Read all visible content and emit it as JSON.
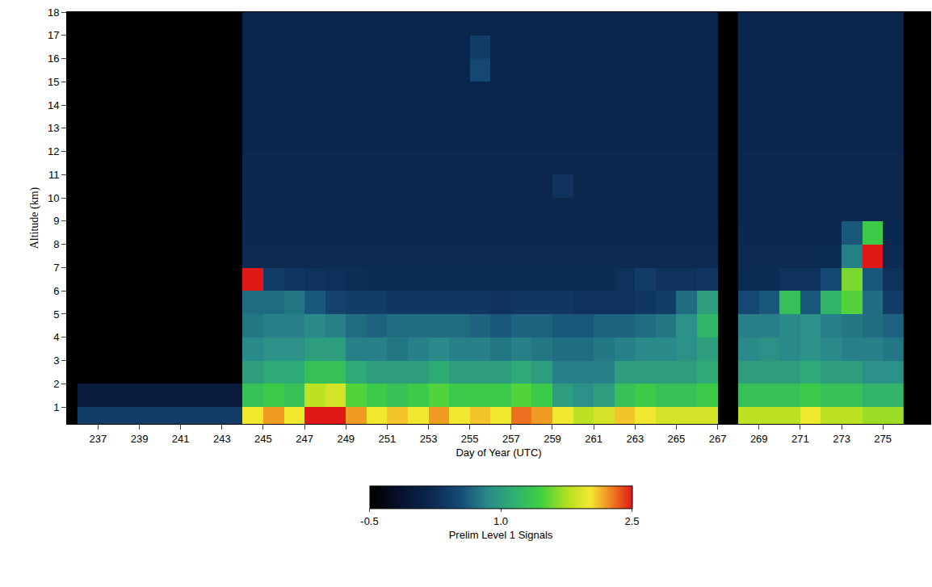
{
  "chart_data": {
    "type": "heatmap",
    "xlabel": "Day of Year (UTC)",
    "ylabel": "Altitude (km)",
    "xlim": [
      235.5,
      277.3
    ],
    "xticks": [
      237,
      239,
      241,
      243,
      245,
      247,
      249,
      251,
      253,
      255,
      257,
      259,
      261,
      263,
      265,
      267,
      269,
      271,
      273,
      275
    ],
    "ylim": [
      0.27,
      18
    ],
    "yticks": [
      1,
      2,
      3,
      4,
      5,
      6,
      7,
      8,
      9,
      10,
      11,
      12,
      13,
      14,
      15,
      16,
      17,
      18
    ],
    "x": [
      236.5,
      237.5,
      238.5,
      239.5,
      240.5,
      241.5,
      242.5,
      243.5,
      244.5,
      245.5,
      246.5,
      247.5,
      248.5,
      249.5,
      250.5,
      251.5,
      252.5,
      253.5,
      254.5,
      255.5,
      256.5,
      257.5,
      258.5,
      259.5,
      260.5,
      261.5,
      262.5,
      263.5,
      264.5,
      265.5,
      266.5,
      267.5,
      268.5,
      269.5,
      270.5,
      271.5,
      272.5,
      273.5,
      274.5,
      275.5
    ],
    "y": [
      0.5,
      1.5,
      2.5,
      3.5,
      4.5,
      5.5,
      6.5,
      7.5,
      8.5,
      9.5,
      10.5,
      11.5,
      12.5,
      13.5,
      14.5,
      15.5,
      16.5,
      17.5
    ],
    "cells": [
      [
        0.4,
        0.4,
        0.4,
        0.4,
        0.4,
        0.4,
        0.4,
        0.4,
        2.0,
        2.2,
        2.0,
        2.5,
        2.6,
        2.2,
        2.0,
        2.1,
        2.0,
        2.2,
        2.0,
        2.1,
        2.0,
        2.3,
        2.2,
        2.0,
        1.8,
        1.9,
        2.1,
        2.0,
        1.9,
        1.9,
        1.9,
        null,
        1.8,
        1.8,
        1.8,
        2.0,
        1.8,
        1.8,
        1.7,
        1.7
      ],
      [
        0.0,
        0.0,
        0.0,
        0.0,
        0.0,
        0.0,
        0.0,
        0.0,
        1.3,
        1.4,
        1.3,
        1.8,
        1.9,
        1.5,
        1.4,
        1.3,
        1.4,
        1.5,
        1.4,
        1.4,
        1.4,
        1.5,
        1.4,
        1.0,
        0.9,
        1.0,
        1.3,
        1.4,
        1.3,
        1.3,
        1.4,
        null,
        1.3,
        1.3,
        1.3,
        1.4,
        1.3,
        1.3,
        1.2,
        1.2
      ],
      [
        -0.5,
        -0.5,
        -0.5,
        -0.5,
        -0.5,
        -0.5,
        -0.5,
        -0.5,
        1.0,
        1.1,
        1.1,
        1.3,
        1.3,
        1.1,
        1.0,
        1.0,
        1.0,
        1.1,
        1.0,
        1.0,
        1.0,
        1.1,
        1.0,
        0.8,
        0.8,
        0.8,
        1.0,
        1.0,
        1.0,
        1.0,
        1.1,
        null,
        1.0,
        1.0,
        1.0,
        1.1,
        1.0,
        1.0,
        0.9,
        0.9
      ],
      [
        -0.5,
        -0.5,
        -0.5,
        -0.5,
        -0.5,
        -0.5,
        -0.5,
        -0.5,
        0.85,
        0.9,
        0.9,
        1.0,
        1.0,
        0.8,
        0.8,
        0.75,
        0.8,
        0.85,
        0.8,
        0.8,
        0.75,
        0.8,
        0.75,
        0.7,
        0.7,
        0.75,
        0.8,
        0.85,
        0.85,
        0.9,
        1.0,
        null,
        0.85,
        0.9,
        0.85,
        0.9,
        0.85,
        0.8,
        0.8,
        0.75
      ],
      [
        -0.5,
        -0.5,
        -0.5,
        -0.5,
        -0.5,
        -0.5,
        -0.5,
        -0.5,
        0.75,
        0.8,
        0.8,
        0.85,
        0.8,
        0.7,
        0.65,
        0.7,
        0.7,
        0.7,
        0.7,
        0.65,
        0.6,
        0.65,
        0.65,
        0.6,
        0.6,
        0.65,
        0.65,
        0.7,
        0.75,
        0.9,
        1.2,
        null,
        0.8,
        0.8,
        0.85,
        0.9,
        0.8,
        0.75,
        0.7,
        0.65
      ],
      [
        -0.5,
        -0.5,
        -0.5,
        -0.5,
        -0.5,
        -0.5,
        -0.5,
        -0.5,
        0.7,
        0.7,
        0.75,
        0.6,
        0.45,
        0.4,
        0.4,
        0.35,
        0.35,
        0.35,
        0.35,
        0.35,
        0.3,
        0.35,
        0.35,
        0.35,
        0.3,
        0.3,
        0.3,
        0.35,
        0.4,
        0.7,
        1.0,
        null,
        0.5,
        0.6,
        1.3,
        0.6,
        1.2,
        1.5,
        0.7,
        0.4
      ],
      [
        -0.5,
        -0.5,
        -0.5,
        -0.5,
        -0.5,
        -0.5,
        -0.5,
        -0.5,
        2.6,
        0.4,
        0.35,
        0.3,
        0.28,
        0.26,
        0.25,
        0.25,
        0.25,
        0.25,
        0.25,
        0.25,
        0.25,
        0.25,
        0.25,
        0.25,
        0.25,
        0.25,
        0.3,
        0.4,
        0.3,
        0.3,
        0.35,
        null,
        0.25,
        0.25,
        0.3,
        0.3,
        0.5,
        1.6,
        0.6,
        0.3
      ],
      [
        -0.5,
        -0.5,
        -0.5,
        -0.5,
        -0.5,
        -0.5,
        -0.5,
        -0.5,
        0.22,
        0.22,
        0.22,
        0.22,
        0.22,
        0.22,
        0.22,
        0.22,
        0.22,
        0.22,
        0.22,
        0.22,
        0.22,
        0.22,
        0.22,
        0.22,
        0.22,
        0.22,
        0.22,
        0.22,
        0.22,
        0.22,
        0.22,
        null,
        0.22,
        0.22,
        0.22,
        0.22,
        0.25,
        0.8,
        2.6,
        0.22
      ],
      [
        -0.5,
        -0.5,
        -0.5,
        -0.5,
        -0.5,
        -0.5,
        -0.5,
        -0.5,
        0.2,
        0.2,
        0.2,
        0.2,
        0.2,
        0.2,
        0.2,
        0.2,
        0.2,
        0.2,
        0.2,
        0.2,
        0.2,
        0.2,
        0.2,
        0.2,
        0.2,
        0.2,
        0.2,
        0.2,
        0.2,
        0.2,
        0.2,
        null,
        0.2,
        0.2,
        0.2,
        0.2,
        0.2,
        0.6,
        1.4,
        0.2
      ],
      [
        -0.5,
        -0.5,
        -0.5,
        -0.5,
        -0.5,
        -0.5,
        -0.5,
        -0.5,
        0.18,
        0.18,
        0.18,
        0.18,
        0.18,
        0.18,
        0.18,
        0.18,
        0.18,
        0.18,
        0.18,
        0.18,
        0.18,
        0.18,
        0.18,
        0.18,
        0.18,
        0.18,
        0.18,
        0.18,
        0.18,
        0.18,
        0.18,
        null,
        0.18,
        0.18,
        0.18,
        0.18,
        0.18,
        0.18,
        0.18,
        0.18
      ],
      [
        -0.5,
        -0.5,
        -0.5,
        -0.5,
        -0.5,
        -0.5,
        -0.5,
        -0.5,
        0.18,
        0.18,
        0.18,
        0.18,
        0.18,
        0.18,
        0.18,
        0.18,
        0.18,
        0.18,
        0.18,
        0.18,
        0.18,
        0.18,
        0.18,
        0.3,
        0.18,
        0.18,
        0.18,
        0.18,
        0.18,
        0.18,
        0.18,
        null,
        0.18,
        0.18,
        0.18,
        0.18,
        0.18,
        0.18,
        0.18,
        0.18
      ],
      [
        -0.5,
        -0.5,
        -0.5,
        -0.5,
        -0.5,
        -0.5,
        -0.5,
        -0.5,
        0.17,
        0.17,
        0.17,
        0.17,
        0.17,
        0.17,
        0.17,
        0.17,
        0.17,
        0.17,
        0.17,
        0.17,
        0.17,
        0.17,
        0.17,
        0.17,
        0.17,
        0.17,
        0.17,
        0.17,
        0.17,
        0.17,
        0.17,
        null,
        0.17,
        0.17,
        0.17,
        0.17,
        0.17,
        0.17,
        0.17,
        0.17
      ],
      [
        -0.5,
        -0.5,
        -0.5,
        -0.5,
        -0.5,
        -0.5,
        -0.5,
        -0.5,
        0.15,
        0.15,
        0.15,
        0.15,
        0.15,
        0.15,
        0.15,
        0.15,
        0.15,
        0.15,
        0.15,
        0.15,
        0.15,
        0.15,
        0.15,
        0.15,
        0.15,
        0.15,
        0.15,
        0.15,
        0.15,
        0.15,
        0.15,
        null,
        0.15,
        0.15,
        0.15,
        0.15,
        0.15,
        0.15,
        0.15,
        0.15
      ],
      [
        -0.5,
        -0.5,
        -0.5,
        -0.5,
        -0.5,
        -0.5,
        -0.5,
        -0.5,
        0.15,
        0.15,
        0.15,
        0.15,
        0.15,
        0.15,
        0.15,
        0.15,
        0.15,
        0.15,
        0.15,
        0.15,
        0.15,
        0.15,
        0.15,
        0.15,
        0.15,
        0.15,
        0.15,
        0.15,
        0.15,
        0.15,
        0.15,
        null,
        0.15,
        0.15,
        0.15,
        0.15,
        0.15,
        0.15,
        0.15,
        0.15
      ],
      [
        -0.5,
        -0.5,
        -0.5,
        -0.5,
        -0.5,
        -0.5,
        -0.5,
        -0.5,
        0.15,
        0.15,
        0.15,
        0.15,
        0.15,
        0.15,
        0.15,
        0.15,
        0.15,
        0.15,
        0.15,
        0.15,
        0.15,
        0.15,
        0.15,
        0.15,
        0.15,
        0.15,
        0.15,
        0.15,
        0.15,
        0.15,
        0.15,
        null,
        0.15,
        0.15,
        0.15,
        0.15,
        0.15,
        0.15,
        0.15,
        0.15
      ],
      [
        -0.5,
        -0.5,
        -0.5,
        -0.5,
        -0.5,
        -0.5,
        -0.5,
        -0.5,
        0.15,
        0.15,
        0.15,
        0.15,
        0.15,
        0.15,
        0.15,
        0.15,
        0.15,
        0.15,
        0.15,
        0.5,
        0.15,
        0.15,
        0.15,
        0.15,
        0.15,
        0.15,
        0.15,
        0.15,
        0.15,
        0.15,
        0.15,
        null,
        0.15,
        0.15,
        0.15,
        0.15,
        0.15,
        0.15,
        0.15,
        0.15
      ],
      [
        -0.5,
        -0.5,
        -0.5,
        -0.5,
        -0.5,
        -0.5,
        -0.5,
        -0.5,
        0.15,
        0.15,
        0.15,
        0.15,
        0.15,
        0.15,
        0.15,
        0.15,
        0.15,
        0.15,
        0.15,
        0.4,
        0.15,
        0.15,
        0.15,
        0.15,
        0.15,
        0.15,
        0.15,
        0.15,
        0.15,
        0.15,
        0.15,
        null,
        0.15,
        0.15,
        0.15,
        0.15,
        0.15,
        0.15,
        0.15,
        0.15
      ],
      [
        -0.5,
        -0.5,
        -0.5,
        -0.5,
        -0.5,
        -0.5,
        -0.5,
        -0.5,
        0.15,
        0.15,
        0.15,
        0.15,
        0.15,
        0.15,
        0.15,
        0.15,
        0.15,
        0.15,
        0.15,
        0.15,
        0.15,
        0.15,
        0.15,
        0.15,
        0.15,
        0.15,
        0.15,
        0.15,
        0.15,
        0.15,
        0.15,
        null,
        0.15,
        0.15,
        0.15,
        0.15,
        0.15,
        0.15,
        0.15,
        0.15
      ]
    ],
    "colorbar": {
      "title": "Prelim Level 1 Signals",
      "range": [
        -0.5,
        2.5
      ],
      "ticks": [
        -0.5,
        {
          "value": 1,
          "label": "1.0"
        },
        2.5
      ]
    }
  }
}
